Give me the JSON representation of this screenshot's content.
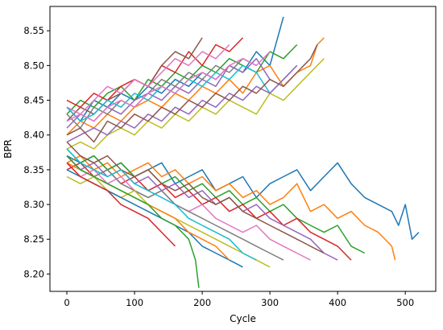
{
  "chart_data": {
    "type": "line",
    "title": "",
    "xlabel": "Cycle",
    "ylabel": "BPR",
    "xlim": [
      -25,
      545
    ],
    "ylim": [
      8.175,
      8.585
    ],
    "x_ticks": [
      0,
      100,
      200,
      300,
      400,
      500
    ],
    "y_ticks": [
      8.2,
      8.25,
      8.3,
      8.35,
      8.4,
      8.45,
      8.5,
      8.55
    ],
    "y_tick_labels": [
      "8.20",
      "8.25",
      "8.30",
      "8.35",
      "8.40",
      "8.45",
      "8.50",
      "8.55"
    ],
    "grid": false,
    "legend": "none",
    "colors": [
      "#1f77b4",
      "#ff7f0e",
      "#2ca02c",
      "#d62728",
      "#9467bd",
      "#8c564b",
      "#e377c2",
      "#7f7f7f",
      "#bcbd22",
      "#17becf"
    ],
    "series": [
      {
        "x": [
          0,
          20,
          40,
          60,
          80,
          100,
          120,
          140,
          160,
          180,
          200,
          220,
          240,
          260,
          280,
          300,
          320
        ],
        "values": [
          8.44,
          8.42,
          8.45,
          8.44,
          8.46,
          8.45,
          8.47,
          8.46,
          8.48,
          8.47,
          8.49,
          8.48,
          8.5,
          8.49,
          8.52,
          8.5,
          8.57
        ]
      },
      {
        "x": [
          0,
          20,
          40,
          60,
          80,
          100,
          120,
          140,
          160,
          180,
          200,
          220,
          240,
          260,
          280,
          300,
          320,
          340,
          360,
          370,
          380
        ],
        "values": [
          8.4,
          8.42,
          8.41,
          8.43,
          8.42,
          8.44,
          8.45,
          8.44,
          8.46,
          8.45,
          8.47,
          8.46,
          8.48,
          8.46,
          8.49,
          8.5,
          8.47,
          8.49,
          8.5,
          8.53,
          8.54
        ]
      },
      {
        "x": [
          0,
          20,
          40,
          60,
          80,
          100,
          120,
          140,
          160,
          180,
          200,
          220,
          240,
          260,
          280,
          300,
          320,
          340
        ],
        "values": [
          8.43,
          8.45,
          8.44,
          8.46,
          8.47,
          8.45,
          8.48,
          8.47,
          8.49,
          8.48,
          8.5,
          8.49,
          8.51,
          8.5,
          8.49,
          8.52,
          8.51,
          8.53
        ]
      },
      {
        "x": [
          0,
          20,
          40,
          60,
          80,
          100,
          120,
          140,
          160,
          180,
          200,
          220,
          240,
          260
        ],
        "values": [
          8.45,
          8.44,
          8.46,
          8.45,
          8.47,
          8.48,
          8.47,
          8.5,
          8.49,
          8.52,
          8.5,
          8.53,
          8.52,
          8.54
        ]
      },
      {
        "x": [
          0,
          20,
          40,
          60,
          80,
          100,
          120,
          140,
          160,
          180,
          200,
          220,
          240,
          260,
          280,
          300
        ],
        "values": [
          8.41,
          8.43,
          8.42,
          8.44,
          8.43,
          8.45,
          8.46,
          8.45,
          8.47,
          8.46,
          8.48,
          8.47,
          8.5,
          8.49,
          8.51,
          8.48
        ]
      },
      {
        "x": [
          0,
          20,
          40,
          60,
          80,
          100,
          120,
          140,
          160,
          180,
          200
        ],
        "values": [
          8.42,
          8.44,
          8.43,
          8.45,
          8.46,
          8.48,
          8.47,
          8.5,
          8.52,
          8.51,
          8.54
        ]
      },
      {
        "x": [
          0,
          20,
          40,
          60,
          80,
          100,
          120,
          140,
          160,
          180,
          200,
          220,
          240
        ],
        "values": [
          8.44,
          8.43,
          8.45,
          8.47,
          8.46,
          8.48,
          8.47,
          8.49,
          8.51,
          8.5,
          8.52,
          8.51,
          8.53
        ]
      },
      {
        "x": [
          0,
          20,
          40,
          60,
          80,
          100,
          120,
          140,
          160,
          180,
          200,
          220,
          240,
          260,
          280
        ],
        "values": [
          8.43,
          8.41,
          8.44,
          8.43,
          8.45,
          8.44,
          8.46,
          8.48,
          8.47,
          8.49,
          8.48,
          8.5,
          8.49,
          8.51,
          8.5
        ]
      },
      {
        "x": [
          0,
          20,
          40,
          60,
          80,
          100,
          120,
          140,
          160,
          180,
          200,
          220,
          240,
          260,
          280,
          300,
          320,
          340,
          360,
          380
        ],
        "values": [
          8.38,
          8.39,
          8.38,
          8.4,
          8.41,
          8.4,
          8.42,
          8.41,
          8.43,
          8.42,
          8.44,
          8.43,
          8.45,
          8.44,
          8.43,
          8.46,
          8.45,
          8.47,
          8.49,
          8.51
        ]
      },
      {
        "x": [
          0,
          20,
          40,
          60,
          80,
          100,
          120,
          140,
          160,
          180,
          200,
          220,
          240,
          260,
          280,
          300,
          320,
          340
        ],
        "values": [
          8.44,
          8.42,
          8.43,
          8.45,
          8.44,
          8.46,
          8.45,
          8.47,
          8.46,
          8.48,
          8.47,
          8.49,
          8.48,
          8.5,
          8.49,
          8.46,
          8.48,
          8.5
        ]
      },
      {
        "x": [
          0,
          20,
          40,
          60,
          80,
          100,
          120,
          140,
          160,
          180,
          200,
          220,
          240,
          260,
          280,
          300,
          320,
          340,
          360,
          380,
          400,
          420,
          440,
          460,
          480,
          490,
          500,
          510,
          520
        ],
        "values": [
          8.37,
          8.36,
          8.37,
          8.35,
          8.36,
          8.34,
          8.35,
          8.36,
          8.33,
          8.34,
          8.35,
          8.32,
          8.33,
          8.34,
          8.31,
          8.33,
          8.34,
          8.35,
          8.32,
          8.34,
          8.36,
          8.33,
          8.31,
          8.3,
          8.29,
          8.27,
          8.3,
          8.25,
          8.26
        ]
      },
      {
        "x": [
          0,
          20,
          40,
          60,
          80,
          100,
          120,
          140,
          160,
          180,
          200,
          220,
          240,
          260,
          280,
          300,
          320,
          340,
          360,
          380,
          400,
          420,
          440,
          460,
          480,
          485
        ],
        "values": [
          8.36,
          8.37,
          8.35,
          8.36,
          8.34,
          8.35,
          8.36,
          8.34,
          8.35,
          8.33,
          8.34,
          8.32,
          8.33,
          8.31,
          8.32,
          8.3,
          8.31,
          8.33,
          8.29,
          8.3,
          8.28,
          8.29,
          8.27,
          8.26,
          8.24,
          8.22
        ]
      },
      {
        "x": [
          0,
          20,
          40,
          60,
          80,
          100,
          120,
          140,
          160,
          180,
          200,
          220,
          240,
          260,
          280,
          300,
          320,
          340,
          360,
          380,
          400,
          420,
          440
        ],
        "values": [
          8.38,
          8.36,
          8.37,
          8.35,
          8.36,
          8.34,
          8.35,
          8.33,
          8.34,
          8.32,
          8.33,
          8.31,
          8.32,
          8.3,
          8.31,
          8.29,
          8.3,
          8.28,
          8.27,
          8.26,
          8.27,
          8.24,
          8.23
        ]
      },
      {
        "x": [
          0,
          20,
          40,
          60,
          80,
          100,
          120,
          140,
          160,
          180,
          200,
          220,
          240,
          260,
          280,
          300,
          320,
          340,
          360,
          380,
          400,
          420
        ],
        "values": [
          8.35,
          8.36,
          8.34,
          8.35,
          8.33,
          8.34,
          8.32,
          8.33,
          8.31,
          8.32,
          8.3,
          8.31,
          8.29,
          8.3,
          8.28,
          8.29,
          8.27,
          8.28,
          8.26,
          8.25,
          8.24,
          8.22
        ]
      },
      {
        "x": [
          0,
          20,
          40,
          60,
          80,
          100,
          120,
          140,
          160,
          180,
          200,
          220,
          240,
          260,
          280,
          300,
          320,
          340,
          360,
          380,
          400
        ],
        "values": [
          8.37,
          8.35,
          8.36,
          8.34,
          8.35,
          8.33,
          8.34,
          8.32,
          8.33,
          8.31,
          8.32,
          8.3,
          8.31,
          8.29,
          8.3,
          8.28,
          8.27,
          8.26,
          8.25,
          8.23,
          8.22
        ]
      },
      {
        "x": [
          0,
          20,
          40,
          60,
          80,
          100,
          120,
          140,
          160,
          180,
          200,
          220,
          240,
          260,
          280,
          300,
          320,
          340,
          360,
          380
        ],
        "values": [
          8.39,
          8.37,
          8.36,
          8.37,
          8.35,
          8.34,
          8.35,
          8.33,
          8.32,
          8.33,
          8.31,
          8.3,
          8.31,
          8.29,
          8.28,
          8.27,
          8.26,
          8.25,
          8.24,
          8.23
        ]
      },
      {
        "x": [
          0,
          20,
          40,
          60,
          80,
          100,
          120,
          140,
          160,
          180,
          200,
          220,
          240,
          260,
          280,
          300,
          320,
          340,
          360
        ],
        "values": [
          8.36,
          8.34,
          8.35,
          8.33,
          8.34,
          8.32,
          8.31,
          8.32,
          8.3,
          8.29,
          8.3,
          8.28,
          8.27,
          8.26,
          8.27,
          8.25,
          8.24,
          8.23,
          8.22
        ]
      },
      {
        "x": [
          0,
          20,
          40,
          60,
          80,
          100,
          120,
          140,
          160,
          180,
          200,
          220,
          240,
          260,
          280,
          300,
          320
        ],
        "values": [
          8.37,
          8.35,
          8.34,
          8.35,
          8.33,
          8.32,
          8.31,
          8.32,
          8.3,
          8.29,
          8.28,
          8.27,
          8.26,
          8.25,
          8.24,
          8.23,
          8.22
        ]
      },
      {
        "x": [
          0,
          20,
          40,
          60,
          80,
          100,
          120,
          140,
          160,
          180,
          200,
          220,
          240,
          260,
          280,
          300
        ],
        "values": [
          8.34,
          8.33,
          8.34,
          8.32,
          8.31,
          8.32,
          8.3,
          8.29,
          8.28,
          8.27,
          8.26,
          8.25,
          8.24,
          8.23,
          8.22,
          8.21
        ]
      },
      {
        "x": [
          0,
          20,
          40,
          60,
          80,
          100,
          120,
          140,
          160,
          180,
          200,
          220,
          240,
          260,
          280
        ],
        "values": [
          8.38,
          8.36,
          8.35,
          8.34,
          8.35,
          8.33,
          8.32,
          8.31,
          8.3,
          8.28,
          8.27,
          8.26,
          8.25,
          8.23,
          8.22
        ]
      },
      {
        "x": [
          0,
          20,
          40,
          60,
          80,
          100,
          120,
          140,
          160,
          180,
          200,
          220,
          240,
          260
        ],
        "values": [
          8.35,
          8.34,
          8.33,
          8.32,
          8.31,
          8.3,
          8.29,
          8.28,
          8.27,
          8.26,
          8.24,
          8.23,
          8.22,
          8.21
        ]
      },
      {
        "x": [
          0,
          20,
          40,
          60,
          80,
          100,
          120,
          140,
          160,
          180,
          200,
          220,
          240
        ],
        "values": [
          8.36,
          8.35,
          8.34,
          8.33,
          8.32,
          8.31,
          8.3,
          8.29,
          8.28,
          8.26,
          8.25,
          8.24,
          8.22
        ]
      },
      {
        "x": [
          0,
          20,
          40,
          60,
          80,
          100,
          120,
          140,
          160,
          180,
          190,
          195
        ],
        "values": [
          8.37,
          8.35,
          8.34,
          8.33,
          8.32,
          8.31,
          8.3,
          8.28,
          8.27,
          8.25,
          8.22,
          8.18
        ]
      },
      {
        "x": [
          0,
          20,
          40,
          60,
          80,
          100,
          120,
          140,
          160
        ],
        "values": [
          8.36,
          8.34,
          8.33,
          8.32,
          8.3,
          8.29,
          8.28,
          8.26,
          8.24
        ]
      },
      {
        "x": [
          0,
          20,
          40,
          60,
          80,
          100,
          120,
          140,
          160,
          180,
          200,
          220,
          240,
          260,
          280,
          300,
          320,
          340
        ],
        "values": [
          8.39,
          8.4,
          8.41,
          8.4,
          8.42,
          8.41,
          8.43,
          8.42,
          8.44,
          8.43,
          8.45,
          8.44,
          8.46,
          8.45,
          8.47,
          8.46,
          8.48,
          8.5
        ]
      },
      {
        "x": [
          0,
          20,
          40,
          60,
          80,
          100,
          120,
          140,
          160,
          180,
          200,
          220,
          240,
          260,
          280,
          300,
          320,
          340,
          360,
          370
        ],
        "values": [
          8.4,
          8.41,
          8.39,
          8.42,
          8.41,
          8.43,
          8.42,
          8.44,
          8.43,
          8.45,
          8.44,
          8.46,
          8.45,
          8.47,
          8.46,
          8.48,
          8.47,
          8.49,
          8.51,
          8.53
        ]
      },
      {
        "x": [
          0,
          20,
          40,
          60,
          80,
          100,
          120,
          140,
          160,
          180,
          200,
          220,
          240,
          260,
          280,
          300
        ],
        "values": [
          8.42,
          8.43,
          8.42,
          8.44,
          8.45,
          8.44,
          8.46,
          8.47,
          8.46,
          8.48,
          8.49,
          8.48,
          8.5,
          8.51,
          8.5,
          8.52
        ]
      }
    ]
  }
}
